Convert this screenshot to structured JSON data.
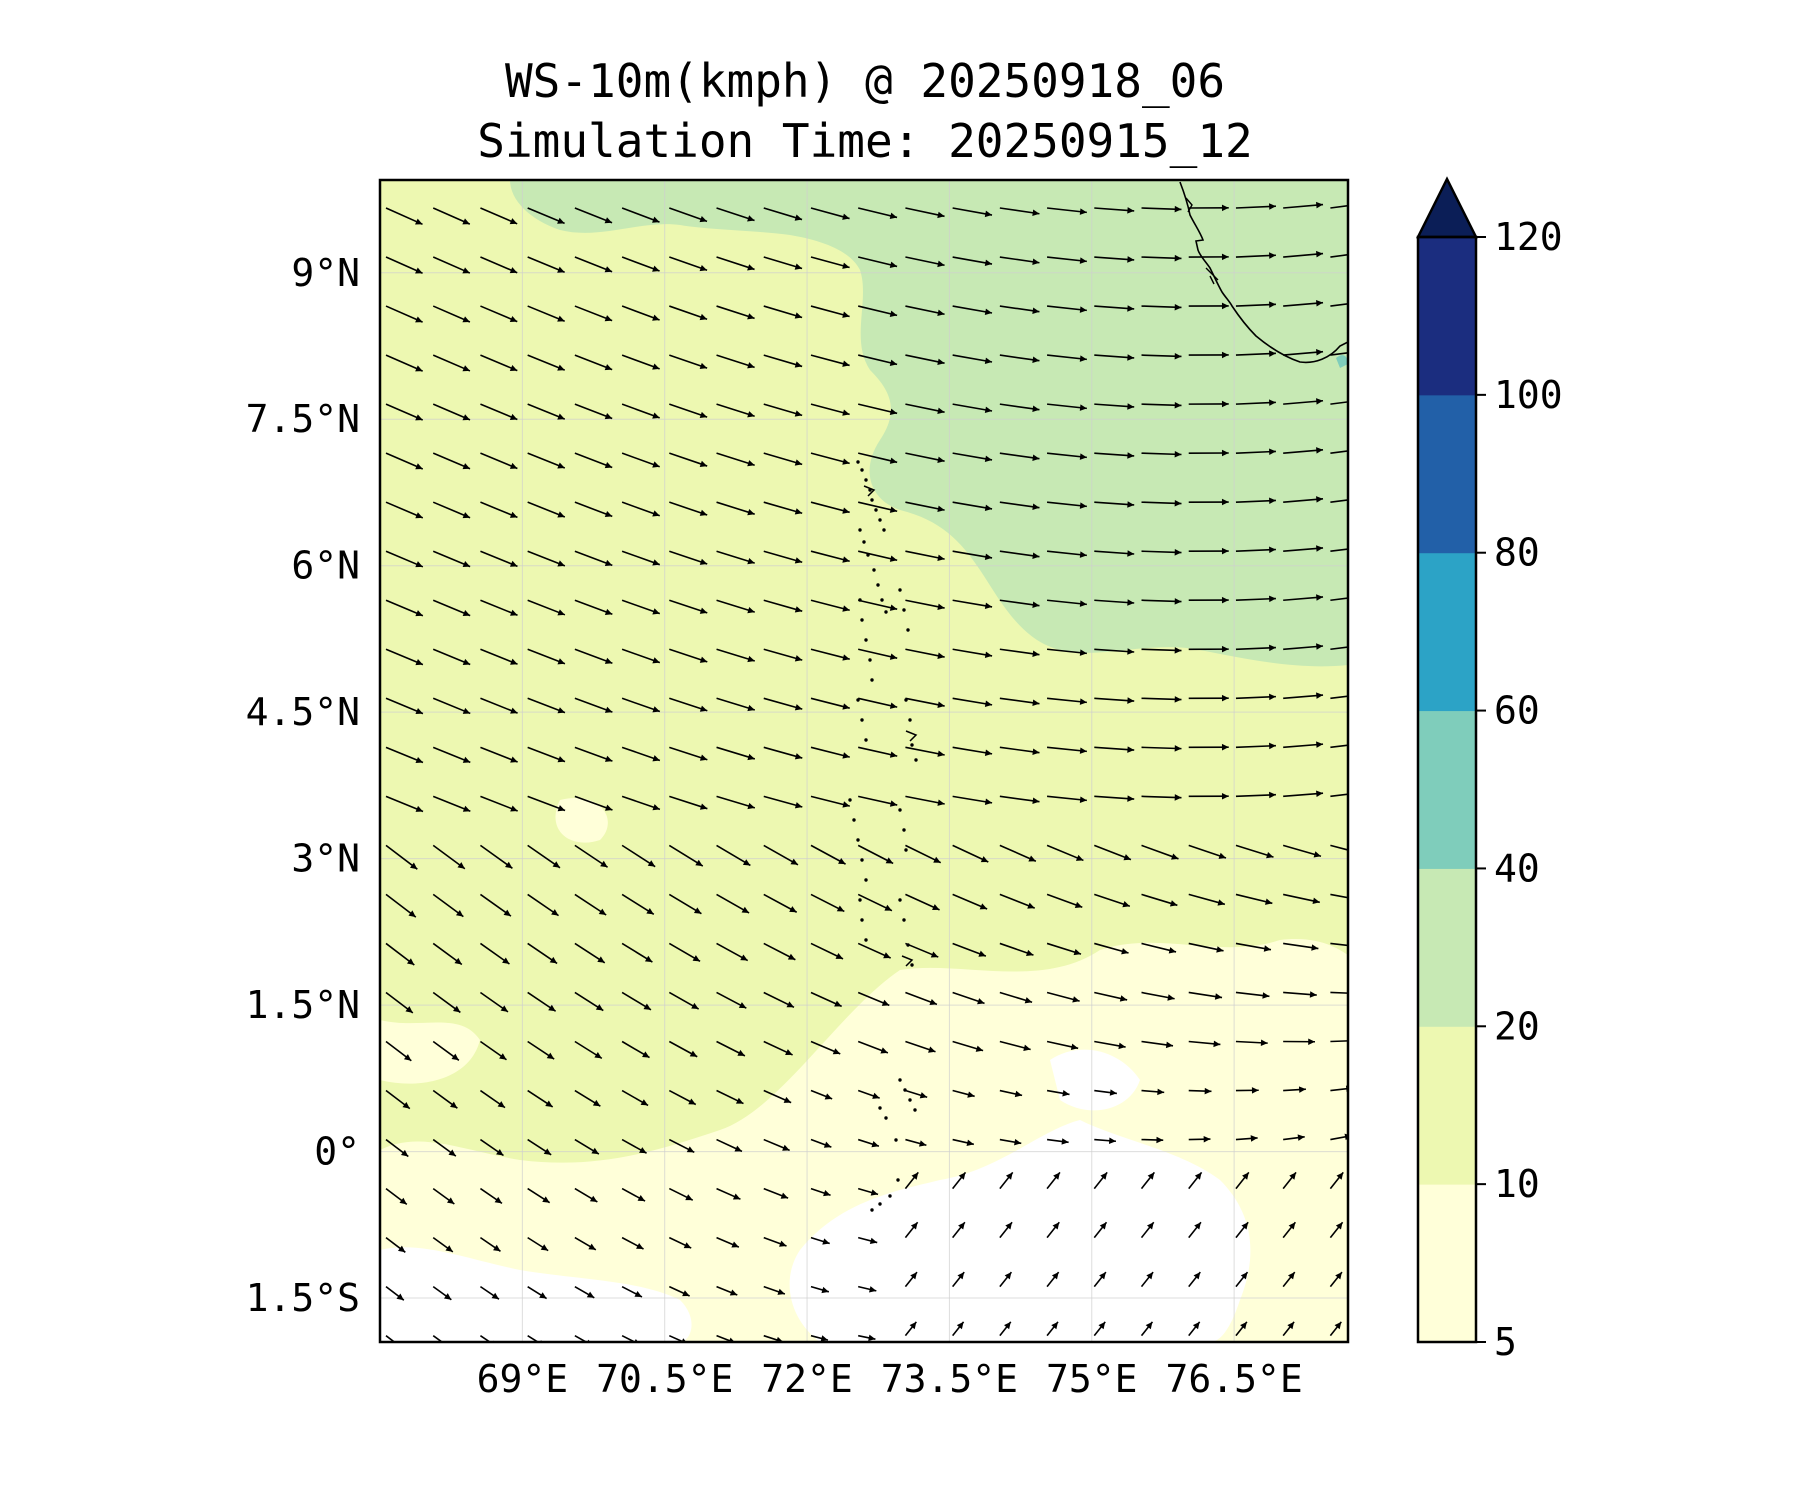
{
  "title": "WS-10m(kmph) @ 20250918_06",
  "subtitle": "Simulation Time: 20250915_12",
  "map": {
    "lon_range": [
      67.5,
      77.7
    ],
    "lat_range": [
      -1.95,
      9.95
    ],
    "lon_ticks": [
      {
        "value": 69,
        "label": "69°E"
      },
      {
        "value": 70.5,
        "label": "70.5°E"
      },
      {
        "value": 72,
        "label": "72°E"
      },
      {
        "value": 73.5,
        "label": "73.5°E"
      },
      {
        "value": 75,
        "label": "75°E"
      },
      {
        "value": 76.5,
        "label": "76.5°E"
      }
    ],
    "lat_ticks": [
      {
        "value": 9,
        "label": "9°N"
      },
      {
        "value": 7.5,
        "label": "7.5°N"
      },
      {
        "value": 6,
        "label": "6°N"
      },
      {
        "value": 4.5,
        "label": "4.5°N"
      },
      {
        "value": 3,
        "label": "3°N"
      },
      {
        "value": 1.5,
        "label": "1.5°N"
      },
      {
        "value": 0,
        "label": "0°"
      },
      {
        "value": -1.5,
        "label": "1.5°S"
      }
    ],
    "gridlines": true,
    "features": [
      "wind-speed-filled-contours",
      "wind-vector-arrows",
      "coastline",
      "maldives-atolls"
    ]
  },
  "colorbar": {
    "levels": [
      5,
      10,
      20,
      40,
      60,
      80,
      100,
      120
    ],
    "tick_labels": [
      "5",
      "10",
      "20",
      "40",
      "60",
      "80",
      "100",
      "120"
    ],
    "colors": [
      "#ffffd9",
      "#edf8b1",
      "#c7e9b4",
      "#7fcdbb",
      "#2ca3c6",
      "#2260a8",
      "#1b2d7f"
    ],
    "extend_color": "#0b1e57",
    "extend": "max"
  }
}
